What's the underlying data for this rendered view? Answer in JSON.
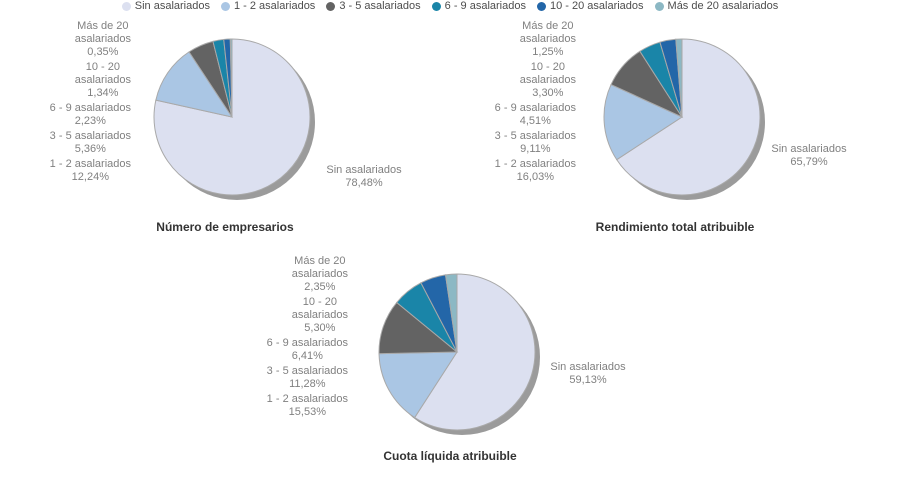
{
  "styles": {
    "background": "#ffffff",
    "series_colors": [
      "#dce0f0",
      "#aac6e4",
      "#636363",
      "#1a85a8",
      "#2366a8",
      "#8cb8c4"
    ],
    "slice_stroke": "#a9a9a9",
    "shadow_color": "#9b9b9b",
    "label_color": "#808080",
    "title_color": "#333333",
    "legend_text_color": "#4d4d4d"
  },
  "categories": [
    "Sin asalariados",
    "1 - 2 asalariados",
    "3 - 5 asalariados",
    "6 - 9 asalariados",
    "10 - 20 asalariados",
    "Más de 20 asalariados"
  ],
  "label_wrap": {
    "Más de 20 asalariados": [
      "Más de 20",
      "asalariados"
    ],
    "10 - 20 asalariados": [
      "10 - 20",
      "asalariados"
    ]
  },
  "chart_data": [
    {
      "type": "pie",
      "title": "Número de empresarios",
      "categories": [
        "Sin asalariados",
        "1 - 2 asalariados",
        "3 - 5 asalariados",
        "6 - 9 asalariados",
        "10 - 20 asalariados",
        "Más de 20 asalariados"
      ],
      "values": [
        78.48,
        12.24,
        5.36,
        2.23,
        1.34,
        0.35
      ],
      "value_labels": [
        "78,48%",
        "12,24%",
        "5,36%",
        "2,23%",
        "1,34%",
        "0,35%"
      ],
      "start_angle": "top",
      "direction": "clockwise",
      "legend_position": "shared-bottom"
    },
    {
      "type": "pie",
      "title": "Rendimiento total atribuible",
      "categories": [
        "Sin asalariados",
        "1 - 2 asalariados",
        "3 - 5 asalariados",
        "6 - 9 asalariados",
        "10 - 20 asalariados",
        "Más de 20 asalariados"
      ],
      "values": [
        65.79,
        16.03,
        9.11,
        4.51,
        3.3,
        1.25
      ],
      "value_labels": [
        "65,79%",
        "16,03%",
        "9,11%",
        "4,51%",
        "3,30%",
        "1,25%"
      ],
      "start_angle": "top",
      "direction": "clockwise",
      "legend_position": "shared-bottom"
    },
    {
      "type": "pie",
      "title": "Cuota líquida atribuible",
      "categories": [
        "Sin asalariados",
        "1 - 2 asalariados",
        "3 - 5 asalariados",
        "6 - 9 asalariados",
        "10 - 20 asalariados",
        "Más de 20 asalariados"
      ],
      "values": [
        59.13,
        15.53,
        11.28,
        6.41,
        5.3,
        2.35
      ],
      "value_labels": [
        "59,13%",
        "15,53%",
        "11,28%",
        "6,41%",
        "5,30%",
        "2,35%"
      ],
      "start_angle": "top",
      "direction": "clockwise",
      "legend_position": "shared-bottom"
    }
  ],
  "legend": {
    "items": [
      "Sin asalariados",
      "1 - 2 asalariados",
      "3 - 5 asalariados",
      "6 - 9 asalariados",
      "10 - 20 asalariados",
      "Más de 20 asalariados"
    ]
  }
}
